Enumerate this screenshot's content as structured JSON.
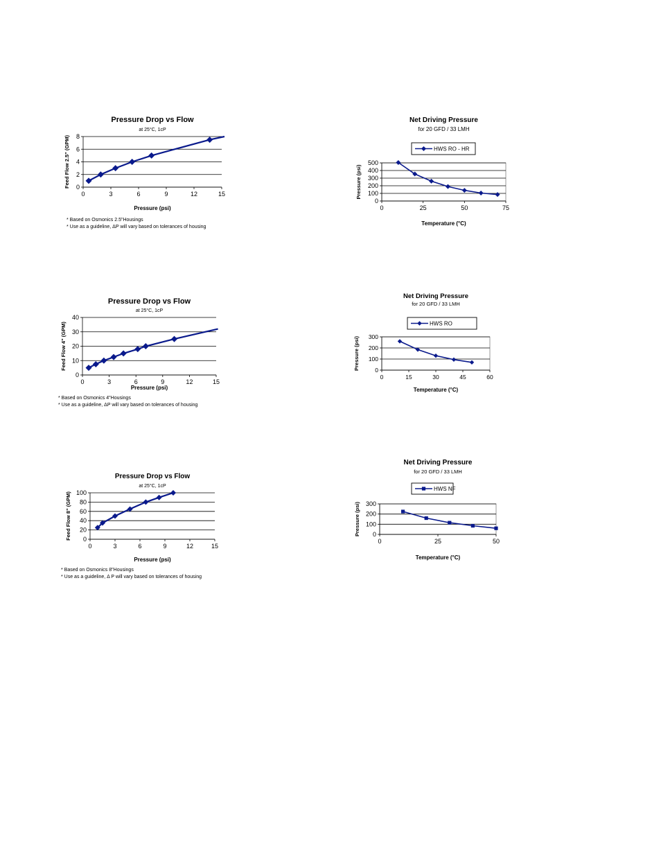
{
  "chart_data": [
    {
      "id": "pd25",
      "type": "line",
      "title": "Pressure Drop vs Flow",
      "subtitle": "at 25°C, 1cP",
      "xlabel": "Pressure (psi)",
      "ylabel": "Feed Flow 2.5\" (GPM)",
      "xlim": [
        0,
        15
      ],
      "ylim": [
        0,
        8
      ],
      "xticks": [
        0,
        3,
        6,
        9,
        12,
        15
      ],
      "yticks": [
        0,
        2,
        4,
        6,
        8
      ],
      "series": [
        {
          "x": [
            0.6,
            1.9,
            3.5,
            5.3,
            7.4,
            13.7
          ],
          "y": [
            1.0,
            2.0,
            3.0,
            4.0,
            5.0,
            7.5
          ],
          "trend": [
            [
              0.6,
              1.0
            ],
            [
              1.9,
              2.0
            ],
            [
              3.5,
              3.0
            ],
            [
              5.3,
              4.0
            ],
            [
              7.4,
              5.0
            ],
            [
              13.7,
              7.5
            ],
            [
              15.3,
              8.0
            ]
          ]
        }
      ],
      "footnotes": [
        "* Based on Osmonics 2.5\"Housings",
        "* Use as a guideline, ΔP will vary based on tolerances of housing"
      ]
    },
    {
      "id": "pd4",
      "type": "line",
      "title": "Pressure Drop vs Flow",
      "subtitle": "at 25°C, 1cP",
      "xlabel": "Pressure (psi)",
      "ylabel": "Feed Flow 4\" (GPM)",
      "xlim": [
        0,
        15
      ],
      "ylim": [
        0,
        40
      ],
      "xticks": [
        0,
        3,
        6,
        9,
        12,
        15
      ],
      "yticks": [
        0,
        10,
        20,
        30,
        40
      ],
      "series": [
        {
          "x": [
            0.7,
            1.5,
            2.4,
            3.5,
            4.6,
            6.2,
            7.1,
            10.3
          ],
          "y": [
            5,
            7.5,
            10,
            12.5,
            15,
            18,
            20,
            25
          ],
          "trend": [
            [
              0.7,
              5
            ],
            [
              1.5,
              7.5
            ],
            [
              2.4,
              10
            ],
            [
              3.5,
              12.5
            ],
            [
              4.6,
              15
            ],
            [
              6.2,
              18
            ],
            [
              7.1,
              20
            ],
            [
              10.3,
              25
            ],
            [
              15.2,
              32
            ]
          ]
        }
      ],
      "footnotes": [
        "* Based on Osmonics 4\"Housings",
        "* Use as a guideline, ΔP will vary based on tolerances of housing"
      ]
    },
    {
      "id": "pd8",
      "type": "line",
      "title": "Pressure Drop vs Flow",
      "subtitle": "at 25°C, 1cP",
      "xlabel": "Pressure (psi)",
      "ylabel": "Feed Flow 8\" (GPM)",
      "xlim": [
        0,
        15
      ],
      "ylim": [
        0,
        100
      ],
      "xticks": [
        0,
        3,
        6,
        9,
        12,
        15
      ],
      "yticks": [
        0,
        20,
        40,
        60,
        80,
        100
      ],
      "series": [
        {
          "x": [
            0.9,
            1.5,
            3.0,
            4.8,
            6.7,
            8.3,
            10.0
          ],
          "y": [
            25,
            35,
            50,
            65,
            80,
            90,
            100
          ],
          "trend": [
            [
              0.9,
              25
            ],
            [
              1.5,
              35
            ],
            [
              3.0,
              50
            ],
            [
              4.8,
              65
            ],
            [
              6.7,
              80
            ],
            [
              8.3,
              90
            ],
            [
              10.0,
              100
            ]
          ]
        }
      ],
      "footnotes": [
        "* Based on Osmonics 8\"Housings",
        "* Use as a guideline, Δ P will vary based on tolerances of housing"
      ]
    },
    {
      "id": "ndp_hr",
      "type": "line",
      "title": "Net Driving Pressure",
      "subtitle": "for 20 GFD / 33 LMH",
      "xlabel": "Temperature (°C)",
      "ylabel": "Pressure (psi)",
      "xlim": [
        0,
        75
      ],
      "ylim": [
        0,
        500
      ],
      "xticks": [
        0,
        25,
        50,
        75
      ],
      "yticks": [
        0,
        100,
        200,
        300,
        400,
        500
      ],
      "series": [
        {
          "name": "HWS RO - HR",
          "x": [
            10,
            20,
            30,
            40,
            50,
            60,
            70
          ],
          "y": [
            505,
            355,
            260,
            190,
            140,
            105,
            85
          ],
          "trend": [
            [
              10,
              505
            ],
            [
              20,
              355
            ],
            [
              30,
              260
            ],
            [
              40,
              190
            ],
            [
              50,
              140
            ],
            [
              60,
              105
            ],
            [
              70,
              85
            ]
          ]
        }
      ]
    },
    {
      "id": "ndp_ro",
      "type": "line",
      "title": "Net Driving Pressure",
      "subtitle": "for 20 GFD / 33 LMH",
      "xlabel": "Temperature (°C)",
      "ylabel": "Pressure (psi)",
      "xlim": [
        0,
        60
      ],
      "ylim": [
        0,
        300
      ],
      "xticks": [
        0,
        15,
        30,
        45,
        60
      ],
      "yticks": [
        0,
        100,
        200,
        300
      ],
      "series": [
        {
          "name": "HWS RO",
          "x": [
            10,
            20,
            30,
            40,
            50
          ],
          "y": [
            260,
            185,
            130,
            95,
            70
          ],
          "trend": [
            [
              10,
              260
            ],
            [
              20,
              185
            ],
            [
              30,
              130
            ],
            [
              40,
              95
            ],
            [
              50,
              70
            ]
          ]
        }
      ]
    },
    {
      "id": "ndp_nf",
      "type": "line",
      "title": "Net Driving Pressure",
      "subtitle": "for 20 GFD / 33 LMH",
      "xlabel": "Temperature (°C)",
      "ylabel": "Pressure (psi)",
      "xlim": [
        0,
        50
      ],
      "ylim": [
        0,
        300
      ],
      "xticks": [
        0,
        25,
        50
      ],
      "yticks": [
        0,
        100,
        200,
        300
      ],
      "series": [
        {
          "name": "HWS NF",
          "x": [
            10,
            20,
            30,
            40,
            50
          ],
          "y": [
            225,
            160,
            115,
            85,
            60
          ],
          "trend": [
            [
              10,
              225
            ],
            [
              20,
              160
            ],
            [
              30,
              115
            ],
            [
              40,
              85
            ],
            [
              50,
              60
            ]
          ]
        }
      ]
    }
  ]
}
